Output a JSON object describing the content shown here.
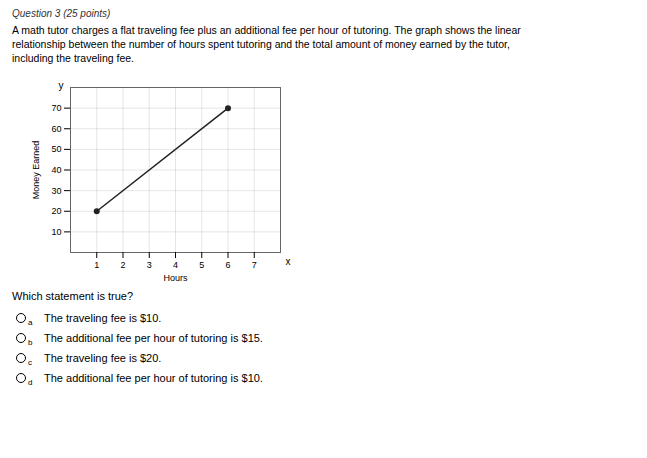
{
  "chart_data": {
    "type": "line",
    "title": "Question 3 (25 points)",
    "subtitle": [
      "A math tutor charges a flat traveling fee plus an additional fee per hour of tutoring. The graph shows the linear",
      "relationship between the number of hours spent tutoring and the total amount of money earned by the tutor,",
      "including the traveling fee."
    ],
    "xlabel": "Hours",
    "ylabel": "Money Earned",
    "annotations": [
      "x",
      "y"
    ],
    "x": [
      1,
      6
    ],
    "values": [
      20,
      70
    ],
    "color": "#222222",
    "marker": "o",
    "xlim": [
      0,
      8
    ],
    "ylim": [
      0,
      80
    ],
    "xticks": [
      1,
      2,
      3,
      4,
      5,
      6,
      7
    ],
    "yticks": [
      10,
      20,
      30,
      40,
      50,
      60,
      70
    ],
    "grid": true,
    "question": "Which statement is true?",
    "options": [
      {
        "label": "a",
        "text": "The traveling fee is $10."
      },
      {
        "label": "b",
        "text": "The additional fee per hour of tutoring is $15."
      },
      {
        "label": "c",
        "text": "The traveling fee is $20."
      },
      {
        "label": "d",
        "text": "The additional fee per hour of tutoring is $10."
      }
    ]
  }
}
